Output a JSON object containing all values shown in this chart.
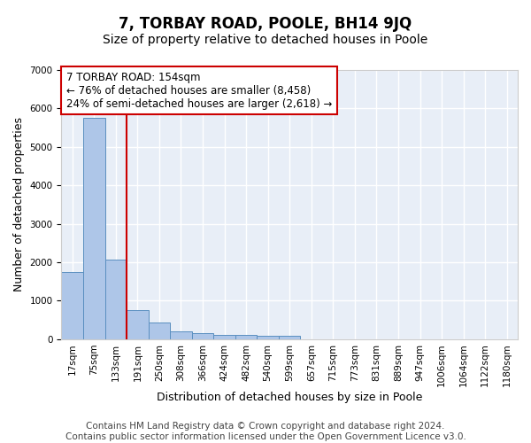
{
  "title": "7, TORBAY ROAD, POOLE, BH14 9JQ",
  "subtitle": "Size of property relative to detached houses in Poole",
  "xlabel": "Distribution of detached houses by size in Poole",
  "ylabel": "Number of detached properties",
  "footer_line1": "Contains HM Land Registry data © Crown copyright and database right 2024.",
  "footer_line2": "Contains public sector information licensed under the Open Government Licence v3.0.",
  "bar_labels": [
    "17sqm",
    "75sqm",
    "133sqm",
    "191sqm",
    "250sqm",
    "308sqm",
    "366sqm",
    "424sqm",
    "482sqm",
    "540sqm",
    "599sqm",
    "657sqm",
    "715sqm",
    "773sqm",
    "831sqm",
    "889sqm",
    "947sqm",
    "1006sqm",
    "1064sqm",
    "1122sqm",
    "1180sqm"
  ],
  "bar_values": [
    1750,
    5750,
    2080,
    750,
    430,
    200,
    150,
    100,
    100,
    80,
    80,
    0,
    0,
    0,
    0,
    0,
    0,
    0,
    0,
    0,
    0
  ],
  "bar_color": "#aec6e8",
  "bar_edge_color": "#5a8fc0",
  "bg_color": "#e8eef7",
  "grid_color": "#ffffff",
  "annotation_line1": "7 TORBAY ROAD: 154sqm",
  "annotation_line2": "← 76% of detached houses are smaller (8,458)",
  "annotation_line3": "24% of semi-detached houses are larger (2,618) →",
  "annotation_box_color": "#ffffff",
  "annotation_box_edge_color": "#cc0000",
  "vline_x": 2.5,
  "vline_color": "#cc0000",
  "ylim": [
    0,
    7000
  ],
  "yticks": [
    0,
    1000,
    2000,
    3000,
    4000,
    5000,
    6000,
    7000
  ],
  "title_fontsize": 12,
  "subtitle_fontsize": 10,
  "axis_label_fontsize": 9,
  "tick_fontsize": 7.5,
  "annotation_fontsize": 8.5,
  "footer_fontsize": 7.5
}
